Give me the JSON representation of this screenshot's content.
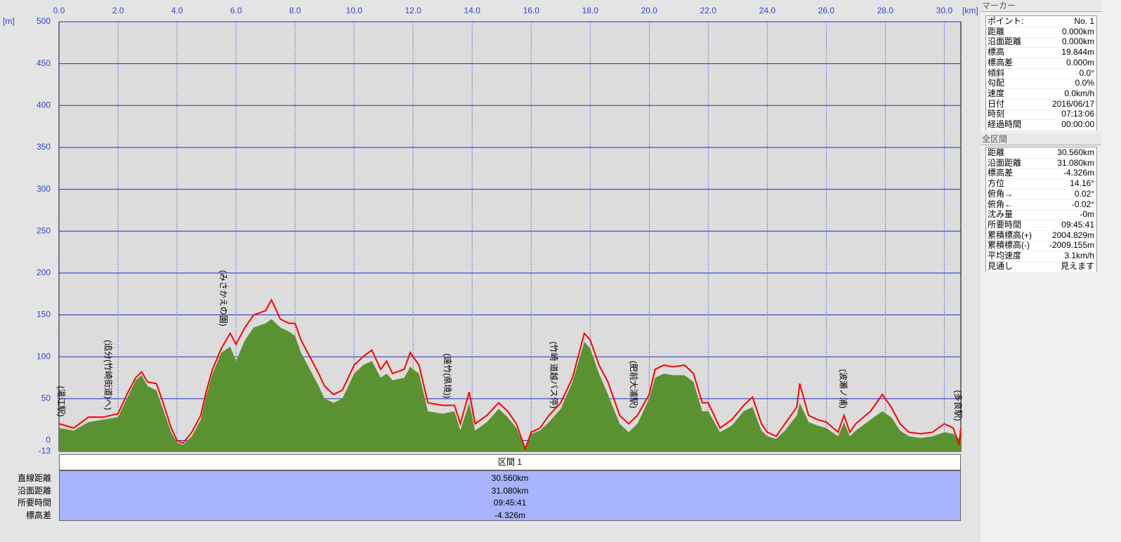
{
  "chart_data": {
    "type": "line",
    "x_unit": "[km]",
    "y_unit": "[m]",
    "xlim": [
      0,
      30.56
    ],
    "ylim": [
      -13,
      500
    ],
    "xticks": [
      {
        "value": 0,
        "label": "0.0"
      },
      {
        "value": 2,
        "label": "2.0"
      },
      {
        "value": 4,
        "label": "4.0"
      },
      {
        "value": 6,
        "label": "6.0"
      },
      {
        "value": 8,
        "label": "8.0"
      },
      {
        "value": 10,
        "label": "10.0"
      },
      {
        "value": 12,
        "label": "12.0"
      },
      {
        "value": 14,
        "label": "14.0"
      },
      {
        "value": 16,
        "label": "16.0"
      },
      {
        "value": 18,
        "label": "18.0"
      },
      {
        "value": 20,
        "label": "20.0"
      },
      {
        "value": 22,
        "label": "22.0"
      },
      {
        "value": 24,
        "label": "24.0"
      },
      {
        "value": 26,
        "label": "26.0"
      },
      {
        "value": 28,
        "label": "28.0"
      },
      {
        "value": 30,
        "label": "30.0"
      }
    ],
    "yticks": [
      -13,
      0,
      50,
      100,
      150,
      200,
      250,
      300,
      350,
      400,
      450,
      500
    ],
    "grid": true,
    "x": [
      0,
      0.5,
      1,
      1.5,
      2,
      2.3,
      2.6,
      2.8,
      3,
      3.3,
      3.5,
      3.8,
      4,
      4.2,
      4.5,
      4.8,
      5,
      5.2,
      5.5,
      5.8,
      6,
      6.3,
      6.6,
      7,
      7.2,
      7.5,
      7.8,
      8,
      8.2,
      8.5,
      8.8,
      9,
      9.3,
      9.6,
      10,
      10.3,
      10.6,
      10.9,
      11.1,
      11.3,
      11.7,
      11.9,
      12.2,
      12.5,
      13,
      13.4,
      13.6,
      13.9,
      14.1,
      14.5,
      14.9,
      15.2,
      15.5,
      15.8,
      16,
      16.3,
      16.6,
      17,
      17.4,
      17.8,
      18,
      18.3,
      18.6,
      19,
      19.3,
      19.6,
      20,
      20.2,
      20.5,
      20.8,
      21.2,
      21.5,
      21.8,
      22,
      22.4,
      22.8,
      23.2,
      23.5,
      23.8,
      24,
      24.3,
      24.6,
      25,
      25.1,
      25.4,
      25.7,
      26,
      26.4,
      26.6,
      26.8,
      27,
      27.5,
      27.9,
      28.2,
      28.5,
      28.8,
      29.2,
      29.6,
      30,
      30.3,
      30.5,
      30.56
    ],
    "series": [
      {
        "color": "#5b9231",
        "fill": true,
        "values": [
          15,
          12,
          22,
          25,
          28,
          50,
          72,
          78,
          65,
          60,
          40,
          10,
          -2,
          -5,
          5,
          25,
          55,
          80,
          105,
          112,
          95,
          120,
          135,
          140,
          145,
          135,
          130,
          125,
          105,
          85,
          65,
          50,
          45,
          50,
          80,
          90,
          95,
          75,
          80,
          72,
          75,
          88,
          80,
          35,
          32,
          35,
          12,
          45,
          12,
          22,
          38,
          28,
          15,
          -10,
          8,
          12,
          22,
          38,
          70,
          118,
          110,
          80,
          55,
          20,
          10,
          20,
          50,
          75,
          80,
          78,
          78,
          70,
          35,
          35,
          10,
          18,
          35,
          40,
          12,
          5,
          2,
          12,
          30,
          45,
          22,
          18,
          15,
          5,
          22,
          5,
          12,
          25,
          35,
          28,
          12,
          5,
          3,
          5,
          10,
          8,
          2,
          10
        ]
      },
      {
        "color": "#ff0000",
        "fill": false,
        "values": [
          20,
          15,
          28,
          28,
          32,
          55,
          75,
          82,
          70,
          68,
          48,
          15,
          0,
          -3,
          10,
          30,
          60,
          85,
          110,
          128,
          115,
          135,
          150,
          155,
          168,
          145,
          140,
          140,
          120,
          100,
          80,
          65,
          55,
          60,
          90,
          100,
          108,
          85,
          95,
          80,
          85,
          105,
          90,
          45,
          42,
          42,
          20,
          58,
          20,
          30,
          45,
          35,
          20,
          -10,
          10,
          15,
          30,
          45,
          75,
          128,
          120,
          90,
          70,
          30,
          20,
          30,
          55,
          85,
          90,
          88,
          90,
          80,
          45,
          45,
          15,
          25,
          42,
          52,
          20,
          10,
          5,
          20,
          40,
          68,
          30,
          25,
          22,
          10,
          30,
          10,
          20,
          35,
          55,
          40,
          20,
          10,
          8,
          10,
          20,
          15,
          -5,
          15
        ]
      }
    ],
    "annotations": [
      {
        "text": "(湯江駅)",
        "x": 0
      },
      {
        "text": "(追分(竹崎街道)へ)",
        "x": 1.6
      },
      {
        "text": "(みさかえの園)",
        "x": 5.5
      },
      {
        "text": "(遠竹(県境))",
        "x": 13.1
      },
      {
        "text": "(竹崎 道越バス停)",
        "x": 16.7
      },
      {
        "text": "(肥前大浦駅)",
        "x": 19.4
      },
      {
        "text": "(波瀬ノ浦)",
        "x": 26.5
      },
      {
        "text": "(多良駅)",
        "x": 30.4
      }
    ]
  },
  "section": {
    "title": "区間 1",
    "rows": [
      {
        "label": "直線距離",
        "value": "30.560km"
      },
      {
        "label": "沿面距離",
        "value": "31.080km"
      },
      {
        "label": "所要時間",
        "value": "09:45:41"
      },
      {
        "label": "標高差",
        "value": "-4.326m"
      }
    ]
  },
  "marker_panel": {
    "title": "マーカー",
    "rows": [
      [
        "ポイント:",
        "No. 1"
      ],
      [
        "距離",
        "0.000km"
      ],
      [
        "沿面距離",
        "0.000km"
      ],
      [
        "標高",
        "19.844m"
      ],
      [
        "標高差",
        "0.000m"
      ],
      [
        "傾斜",
        "0.0°"
      ],
      [
        "勾配",
        "0.0%"
      ],
      [
        "速度",
        "0.0km/h"
      ],
      [
        "日付",
        "2016/06/17"
      ],
      [
        "時刻",
        "07:13:06"
      ],
      [
        "経過時間",
        "00:00:00"
      ]
    ]
  },
  "total_panel": {
    "title": "全区間",
    "rows": [
      [
        "距離",
        "30.560km"
      ],
      [
        "沿面距離",
        "31.080km"
      ],
      [
        "標高差",
        "-4.326m"
      ],
      [
        "方位",
        "14.16°"
      ],
      [
        "俯角→",
        "0.02°"
      ],
      [
        "俯角←",
        "-0.02°"
      ],
      [
        "沈み量",
        "-0m"
      ],
      [
        "所要時間",
        "09:45:41"
      ],
      [
        "累積標高(+)",
        "2004.829m"
      ],
      [
        "累積標高(-)",
        "-2009.155m"
      ],
      [
        "平均速度",
        "3.1km/h"
      ],
      [
        "見通し",
        "見えます"
      ]
    ]
  }
}
